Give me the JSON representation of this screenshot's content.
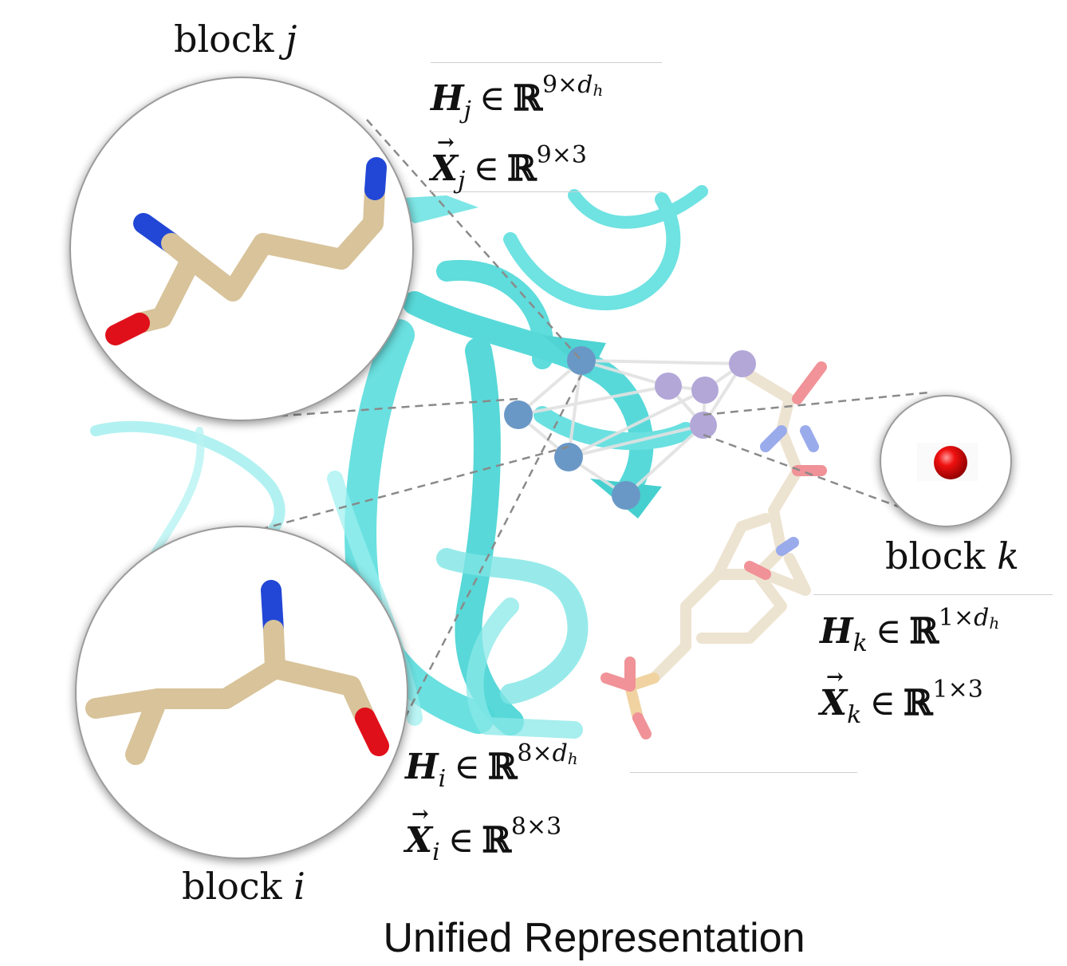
{
  "labels": {
    "block_j": {
      "word": "block",
      "var": "j"
    },
    "block_i": {
      "word": "block",
      "var": "i"
    },
    "block_k": {
      "word": "block",
      "var": "k"
    }
  },
  "equations": {
    "H_j": {
      "sym": "H",
      "sub": "j",
      "set": "ℝ",
      "dim1": "9",
      "times": "×",
      "dim2": "d",
      "dim2_sub": "h"
    },
    "X_j": {
      "sym": "X",
      "sub": "j",
      "set": "ℝ",
      "dim1": "9",
      "times": "×",
      "dim2": "3"
    },
    "H_i": {
      "sym": "H",
      "sub": "i",
      "set": "ℝ",
      "dim1": "8",
      "times": "×",
      "dim2": "d",
      "dim2_sub": "h"
    },
    "X_i": {
      "sym": "X",
      "sub": "i",
      "set": "ℝ",
      "dim1": "8",
      "times": "×",
      "dim2": "3"
    },
    "H_k": {
      "sym": "H",
      "sub": "k",
      "set": "ℝ",
      "dim1": "1",
      "times": "×",
      "dim2": "d",
      "dim2_sub": "h"
    },
    "X_k": {
      "sym": "X",
      "sub": "k",
      "set": "ℝ",
      "dim1": "1",
      "times": "×",
      "dim2": "3"
    },
    "element_of": "∈"
  },
  "caption": "Unified Representation",
  "colors": {
    "protein_ribbon": "#5fe3e3",
    "stick_carbon": "#d8c39a",
    "stick_nitrogen": "#2247d6",
    "stick_oxygen": "#e0101a",
    "node_protein": "#6a98c6",
    "node_ligand": "#b3a7d8",
    "edge": "#e2e2e2",
    "dashed_connector": "#8a8a8a",
    "phosphate": "#e0a030"
  }
}
